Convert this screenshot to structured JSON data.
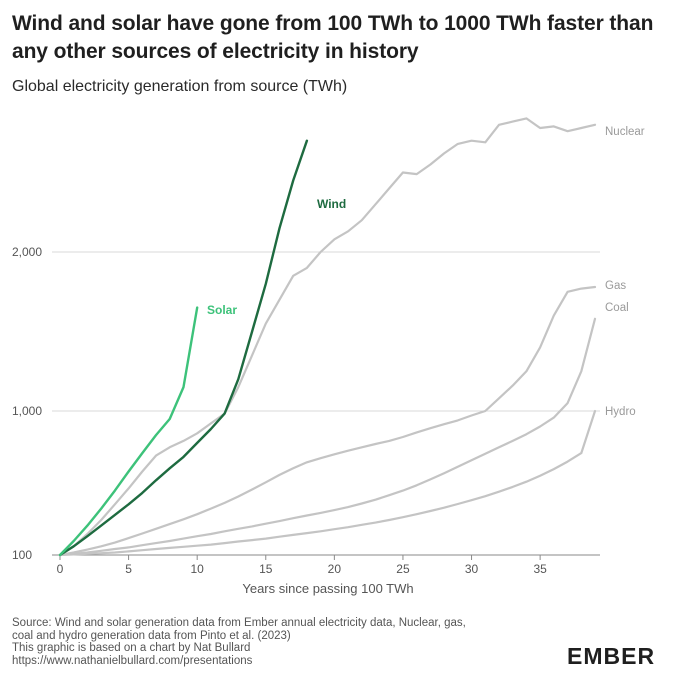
{
  "title": "Wind and solar have gone from 100 TWh to 1000 TWh faster than any other sources of electricity in history",
  "subtitle": "Global electricity generation from source (TWh)",
  "source": [
    "Source: Wind and solar generation data from Ember annual electricity data, Nuclear, gas,",
    "coal and hydro generation data from Pinto et al. (2023)",
    "This graphic is based on a chart by Nat Bullard",
    "https://www.nathanielbullard.com/presentations"
  ],
  "logo": "EMBER",
  "colors": {
    "solar": "#3dc27a",
    "wind": "#1e6b40",
    "other": "#c4c4c4",
    "grid": "#d9d9d9",
    "axis": "#555555"
  },
  "chart_data": {
    "type": "line",
    "title": "Global electricity generation from source (TWh)",
    "xlabel": "Years since passing 100 TWh",
    "ylabel": "",
    "xlim": [
      0,
      39
    ],
    "ylim": [
      100,
      2800
    ],
    "y_scale": "log",
    "x_ticks": [
      0,
      5,
      10,
      15,
      20,
      25,
      30,
      35
    ],
    "y_ticks": [
      100,
      1000,
      2000
    ],
    "y_tick_labels": [
      "100",
      "1,000",
      "2,000"
    ],
    "grid": "horizontal",
    "series": [
      {
        "name": "Nuclear",
        "color": "#c4c4c4",
        "x": [
          0,
          1,
          2,
          3,
          4,
          5,
          6,
          7,
          8,
          9,
          10,
          11,
          12,
          13,
          14,
          15,
          16,
          17,
          18,
          19,
          20,
          21,
          22,
          23,
          24,
          25,
          26,
          27,
          28,
          29,
          30,
          31,
          32,
          33,
          34,
          35,
          36,
          37,
          38,
          39
        ],
        "y": [
          100,
          115,
          140,
          175,
          225,
          290,
          380,
          490,
          560,
          620,
          700,
          820,
          960,
          1150,
          1350,
          1550,
          1700,
          1850,
          1900,
          2000,
          2080,
          2130,
          2200,
          2300,
          2400,
          2500,
          2490,
          2550,
          2620,
          2680,
          2700,
          2690,
          2800,
          2820,
          2840,
          2780,
          2790,
          2760,
          2780,
          2800
        ]
      },
      {
        "name": "Gas",
        "color": "#c4c4c4",
        "x": [
          0,
          1,
          2,
          3,
          4,
          5,
          6,
          7,
          8,
          9,
          10,
          11,
          12,
          13,
          14,
          15,
          16,
          17,
          18,
          19,
          20,
          21,
          22,
          23,
          24,
          25,
          26,
          27,
          28,
          29,
          30,
          31,
          32,
          33,
          34,
          35,
          36,
          37,
          38,
          39
        ],
        "y": [
          100,
          104,
          109,
          115,
          122,
          131,
          141,
          152,
          164,
          177,
          192,
          210,
          230,
          255,
          285,
          320,
          360,
          400,
          440,
          470,
          500,
          530,
          560,
          590,
          620,
          660,
          710,
          760,
          810,
          860,
          930,
          1000,
          1080,
          1160,
          1250,
          1400,
          1600,
          1750,
          1770,
          1780
        ]
      },
      {
        "name": "Coal",
        "color": "#c4c4c4",
        "x": [
          0,
          1,
          2,
          3,
          4,
          5,
          6,
          7,
          8,
          9,
          10,
          11,
          12,
          13,
          14,
          15,
          16,
          17,
          18,
          19,
          20,
          21,
          22,
          23,
          24,
          25,
          26,
          27,
          28,
          29,
          30,
          31,
          32,
          33,
          34,
          35,
          36,
          37,
          38,
          39
        ],
        "y": [
          100,
          102,
          104,
          107,
          110,
          113,
          117,
          121,
          125,
          130,
          135,
          140,
          146,
          152,
          158,
          165,
          172,
          180,
          188,
          196,
          205,
          215,
          228,
          242,
          260,
          280,
          305,
          335,
          370,
          410,
          455,
          505,
          560,
          620,
          690,
          780,
          900,
          1050,
          1250,
          1580
        ]
      },
      {
        "name": "Hydro",
        "color": "#c4c4c4",
        "x": [
          0,
          1,
          2,
          3,
          4,
          5,
          6,
          7,
          8,
          9,
          10,
          11,
          12,
          13,
          14,
          15,
          16,
          17,
          18,
          19,
          20,
          21,
          22,
          23,
          24,
          25,
          26,
          27,
          28,
          29,
          30,
          31,
          32,
          33,
          34,
          35,
          36,
          37,
          38,
          39
        ],
        "y": [
          100,
          101,
          102,
          103,
          104,
          106,
          108,
          110,
          112,
          114,
          116,
          118,
          121,
          124,
          127,
          130,
          134,
          138,
          142,
          146,
          151,
          156,
          162,
          168,
          175,
          183,
          192,
          202,
          213,
          226,
          240,
          256,
          275,
          297,
          323,
          355,
          395,
          445,
          510,
          1000
        ]
      },
      {
        "name": "Wind",
        "color": "#1e6b40",
        "x": [
          0,
          1,
          2,
          3,
          4,
          5,
          6,
          7,
          8,
          9,
          10,
          11,
          12,
          13,
          14,
          15,
          16,
          17,
          18
        ],
        "y": [
          100,
          115,
          135,
          160,
          190,
          225,
          270,
          330,
          400,
          480,
          600,
          750,
          960,
          1200,
          1500,
          1800,
          2150,
          2450,
          2700
        ]
      },
      {
        "name": "Solar",
        "color": "#3dc27a",
        "x": [
          0,
          1,
          2,
          3,
          4,
          5,
          6,
          7,
          8,
          9,
          10
        ],
        "y": [
          100,
          125,
          160,
          210,
          280,
          380,
          510,
          680,
          880,
          1150,
          1650
        ]
      }
    ]
  }
}
